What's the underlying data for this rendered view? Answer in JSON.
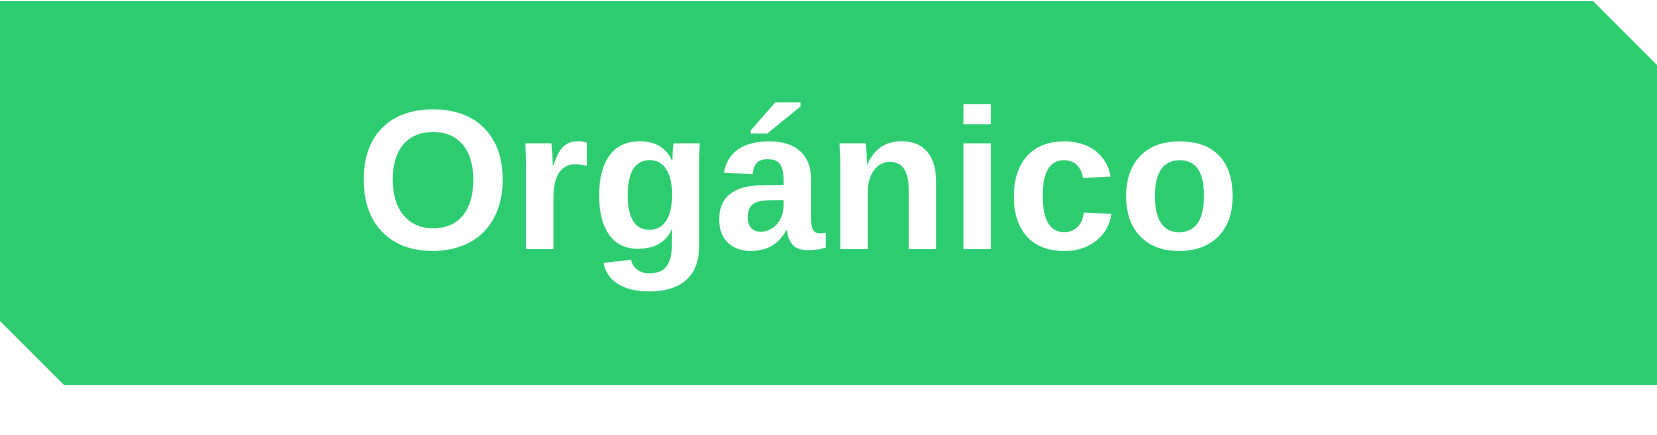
{
  "badge": {
    "text": "Orgánico",
    "background_color": "#2ecc71",
    "text_color": "#ffffff"
  }
}
